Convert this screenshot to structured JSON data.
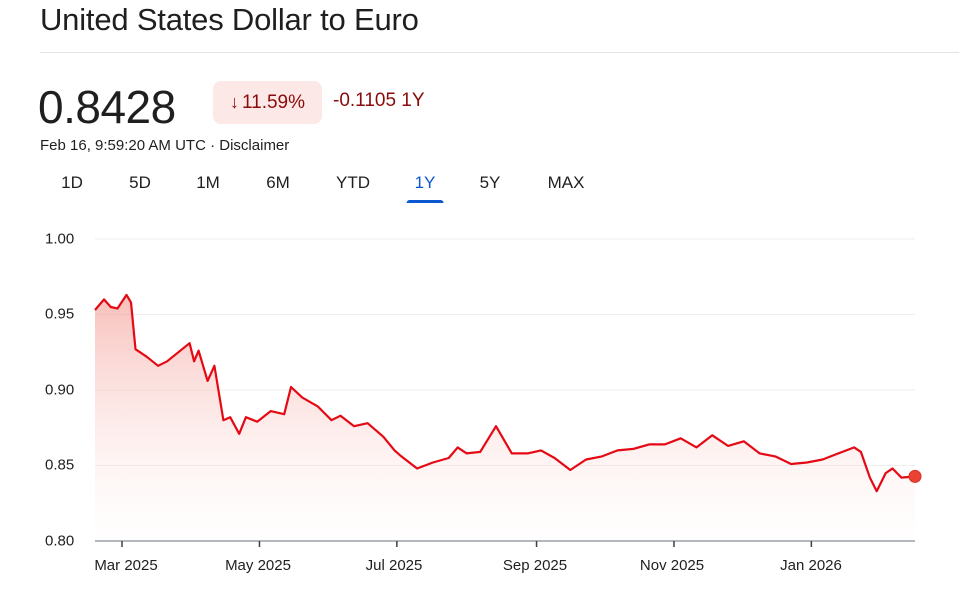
{
  "header": {
    "title": "United States Dollar to Euro"
  },
  "quote": {
    "price": "0.8428",
    "change_percent": "11.59%",
    "change_direction": "down",
    "change_arrow_icon": "arrow-down-icon",
    "change_abs": "-0.1105 1Y",
    "timestamp": "Feb 16, 9:59:20 AM UTC",
    "separator": " · ",
    "disclaimer": "Disclaimer"
  },
  "tabs": [
    {
      "label": "1D",
      "active": false
    },
    {
      "label": "5D",
      "active": false
    },
    {
      "label": "1M",
      "active": false
    },
    {
      "label": "6M",
      "active": false
    },
    {
      "label": "YTD",
      "active": false
    },
    {
      "label": "1Y",
      "active": true
    },
    {
      "label": "5Y",
      "active": false
    },
    {
      "label": "MAX",
      "active": false
    }
  ],
  "colors": {
    "line": "#e50914",
    "negative_text": "#8a0b0b",
    "negative_bg": "#fce8e6",
    "active_tab": "#0b57d0",
    "grid": "#eeeeee",
    "axis": "#9aa0a6"
  },
  "chart_data": {
    "type": "area",
    "title": "United States Dollar to Euro",
    "xlabel": "",
    "ylabel": "",
    "ylim": [
      0.8,
      1.0
    ],
    "yticks": [
      "1.00",
      "0.95",
      "0.90",
      "0.85",
      "0.80"
    ],
    "xticks": [
      "Mar 2025",
      "May 2025",
      "Jul 2025",
      "Sep 2025",
      "Nov 2025",
      "Jan 2026"
    ],
    "grid": true,
    "legend": "none",
    "last_point_marker": true,
    "series": [
      {
        "name": "USD/EUR",
        "x": [
          "2025-02-17",
          "2025-02-21",
          "2025-02-24",
          "2025-02-27",
          "2025-03-03",
          "2025-03-05",
          "2025-03-07",
          "2025-03-12",
          "2025-03-17",
          "2025-03-21",
          "2025-03-26",
          "2025-03-31",
          "2025-04-02",
          "2025-04-04",
          "2025-04-08",
          "2025-04-11",
          "2025-04-15",
          "2025-04-18",
          "2025-04-22",
          "2025-04-25",
          "2025-04-30",
          "2025-05-06",
          "2025-05-12",
          "2025-05-15",
          "2025-05-20",
          "2025-05-27",
          "2025-06-02",
          "2025-06-06",
          "2025-06-12",
          "2025-06-18",
          "2025-06-25",
          "2025-06-30",
          "2025-07-03",
          "2025-07-10",
          "2025-07-17",
          "2025-07-24",
          "2025-07-28",
          "2025-08-01",
          "2025-08-07",
          "2025-08-14",
          "2025-08-21",
          "2025-08-28",
          "2025-09-03",
          "2025-09-09",
          "2025-09-16",
          "2025-09-23",
          "2025-09-30",
          "2025-10-07",
          "2025-10-14",
          "2025-10-21",
          "2025-10-28",
          "2025-11-04",
          "2025-11-11",
          "2025-11-18",
          "2025-11-25",
          "2025-12-02",
          "2025-12-09",
          "2025-12-16",
          "2025-12-23",
          "2025-12-30",
          "2026-01-06",
          "2026-01-13",
          "2026-01-20",
          "2026-01-23",
          "2026-01-27",
          "2026-01-30",
          "2026-02-03",
          "2026-02-06",
          "2026-02-10",
          "2026-02-16"
        ],
        "values": [
          0.953,
          0.96,
          0.955,
          0.954,
          0.963,
          0.958,
          0.927,
          0.922,
          0.916,
          0.919,
          0.925,
          0.931,
          0.919,
          0.926,
          0.906,
          0.916,
          0.88,
          0.882,
          0.871,
          0.882,
          0.879,
          0.886,
          0.884,
          0.902,
          0.895,
          0.889,
          0.88,
          0.883,
          0.876,
          0.878,
          0.869,
          0.86,
          0.856,
          0.848,
          0.852,
          0.855,
          0.862,
          0.858,
          0.859,
          0.876,
          0.858,
          0.858,
          0.86,
          0.855,
          0.847,
          0.854,
          0.856,
          0.86,
          0.861,
          0.864,
          0.864,
          0.868,
          0.862,
          0.87,
          0.863,
          0.866,
          0.858,
          0.856,
          0.851,
          0.852,
          0.854,
          0.858,
          0.862,
          0.859,
          0.842,
          0.833,
          0.845,
          0.848,
          0.842,
          0.8428
        ]
      }
    ]
  }
}
